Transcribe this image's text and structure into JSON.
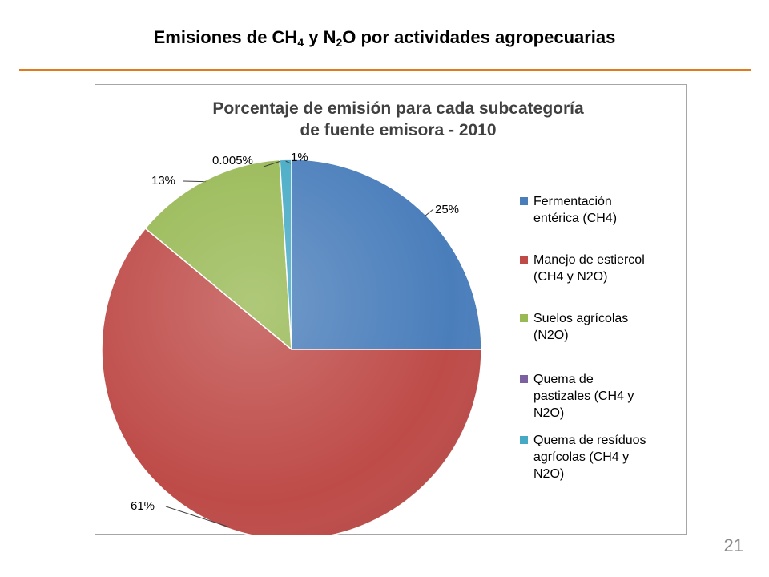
{
  "slide": {
    "title_parts": {
      "t1": "Emisiones de CH",
      "s1": "4",
      "t2": " y N",
      "s2": "2",
      "t3": "O por actividades agropecuarias"
    },
    "page_number": "21",
    "rule_color": "#e07b1b"
  },
  "chart_data": {
    "type": "pie",
    "title_lines": [
      "Porcentaje de emisión para cada subcategoría",
      "de fuente emisora - 2010"
    ],
    "slices": [
      {
        "name": "Fermentación entérica (CH4)",
        "value": 25,
        "label": "25%",
        "color": "#4a7ebb",
        "legend_lines": [
          "Fermentación",
          "entérica (CH4)"
        ]
      },
      {
        "name": "Manejo de estiercol (CH4 y N2O)",
        "value": 61,
        "label": "61%",
        "color": "#be4b48",
        "legend_lines": [
          "Manejo de estiercol",
          "(CH4 y N2O)"
        ]
      },
      {
        "name": "Suelos agrícolas (N2O)",
        "value": 13,
        "label": "13%",
        "color": "#98b954",
        "legend_lines": [
          "Suelos agrícolas",
          "(N2O)"
        ]
      },
      {
        "name": "Quema de pastizales (CH4 y N2O)",
        "value": 0.005,
        "label": "0.005%",
        "color": "#7d60a0",
        "legend_lines": [
          "Quema de",
          "pastizales (CH4 y",
          "N2O)"
        ]
      },
      {
        "name": "Quema de resíduos agrícolas (CH4 y N2O)",
        "value": 1,
        "label": "1%",
        "color": "#46aac5",
        "legend_lines": [
          "Quema de resíduos",
          "agrícolas (CH4 y",
          "N2O)"
        ]
      }
    ],
    "legend_position": "right",
    "start_angle": "12 o'clock",
    "direction": "clockwise"
  }
}
